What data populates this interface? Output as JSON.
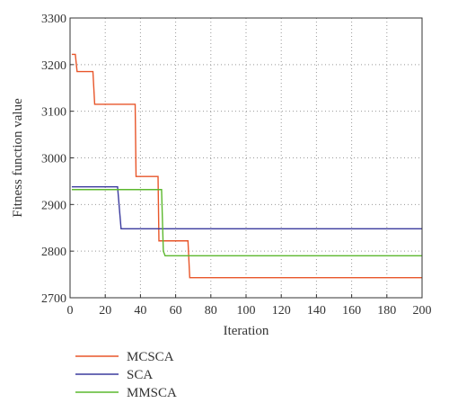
{
  "chart_data": {
    "type": "line",
    "title": "",
    "xlabel": "Iteration",
    "ylabel": "Fitness function value",
    "xlim": [
      0,
      200
    ],
    "ylim": [
      2700,
      3300
    ],
    "xticks": [
      0,
      20,
      40,
      60,
      80,
      100,
      120,
      140,
      160,
      180,
      200
    ],
    "yticks": [
      2700,
      2800,
      2900,
      3000,
      3100,
      3200,
      3300
    ],
    "grid": true,
    "legend_position": "bottom-left, below plot",
    "series": [
      {
        "name": "MCSCA",
        "color": "#e8562a",
        "points": [
          [
            1,
            3222
          ],
          [
            3,
            3222
          ],
          [
            4,
            3185
          ],
          [
            13,
            3185
          ],
          [
            14,
            3115
          ],
          [
            37,
            3115
          ],
          [
            37.5,
            2960
          ],
          [
            50,
            2960
          ],
          [
            50.5,
            2822
          ],
          [
            67,
            2822
          ],
          [
            68,
            2743
          ],
          [
            200,
            2743
          ]
        ]
      },
      {
        "name": "SCA",
        "color": "#3b3b9e",
        "points": [
          [
            1,
            2938
          ],
          [
            27,
            2938
          ],
          [
            29,
            2848
          ],
          [
            200,
            2848
          ]
        ]
      },
      {
        "name": "MMSCA",
        "color": "#5cb82e",
        "points": [
          [
            1,
            2932
          ],
          [
            52,
            2932
          ],
          [
            53,
            2800
          ],
          [
            54,
            2790
          ],
          [
            200,
            2790
          ]
        ]
      }
    ]
  }
}
